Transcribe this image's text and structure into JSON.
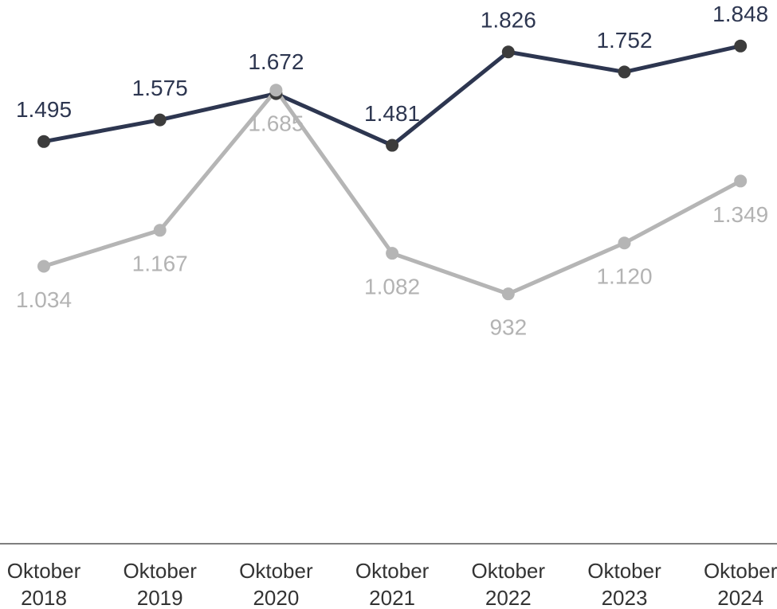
{
  "chart_data": {
    "type": "line",
    "categories": [
      "Oktober 2018",
      "Oktober 2019",
      "Oktober 2020",
      "Oktober 2021",
      "Oktober 2022",
      "Oktober 2023",
      "Oktober 2024"
    ],
    "series": [
      {
        "color": "#2d3650",
        "marker_color": "#3c3c3c",
        "label_color": "#2d3650",
        "label_position": "above",
        "values": [
          1495,
          1575,
          1672,
          1481,
          1826,
          1752,
          1848
        ],
        "value_labels": [
          "1.495",
          "1.575",
          "1.672",
          "1.481",
          "1.826",
          "1.752",
          "1.848"
        ]
      },
      {
        "color": "#b5b5b5",
        "marker_color": "#b5b5b5",
        "label_color": "#b3b3b3",
        "label_position": "below",
        "values": [
          1034,
          1167,
          1685,
          1082,
          932,
          1120,
          1349
        ],
        "value_labels": [
          "1.034",
          "1.167",
          "1.685",
          "1.082",
          "932",
          "1.120",
          "1.349"
        ]
      }
    ]
  }
}
